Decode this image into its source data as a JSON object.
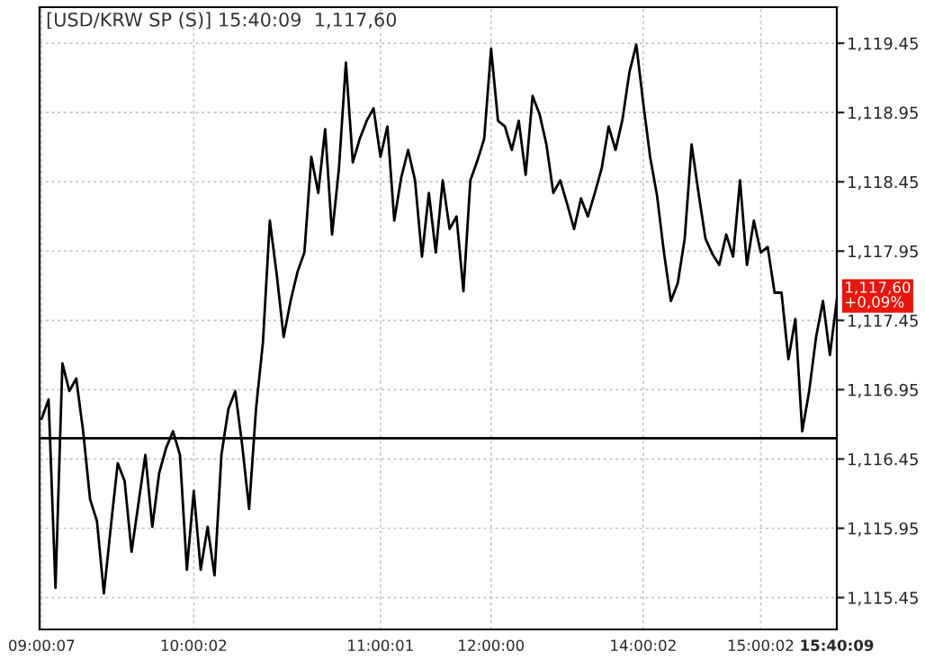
{
  "chart_data": {
    "type": "line",
    "title": "[USD/KRW SP (S)] 15:40:09  1,117,60",
    "categories": [
      "09:00:07",
      null,
      null,
      null,
      null,
      null,
      null,
      null,
      null,
      null,
      null,
      null,
      null,
      null,
      null,
      null,
      null,
      null,
      null,
      null,
      null,
      null,
      "10:00:02",
      null,
      null,
      null,
      null,
      null,
      null,
      null,
      null,
      null,
      null,
      null,
      null,
      null,
      null,
      null,
      null,
      null,
      null,
      null,
      null,
      null,
      null,
      null,
      null,
      null,
      null,
      "11:00:01",
      null,
      null,
      null,
      null,
      null,
      null,
      null,
      null,
      null,
      null,
      null,
      null,
      null,
      null,
      null,
      "12:00:00",
      null,
      null,
      null,
      null,
      null,
      null,
      null,
      null,
      null,
      null,
      null,
      null,
      null,
      null,
      null,
      null,
      null,
      null,
      null,
      null,
      null,
      "14:00:02",
      null,
      null,
      null,
      null,
      null,
      null,
      null,
      null,
      null,
      null,
      null,
      null,
      null,
      null,
      null,
      null,
      "15:00:02",
      null,
      null,
      null,
      null,
      null,
      null,
      null,
      null,
      null,
      null,
      "15:40:09"
    ],
    "series": [
      {
        "color": "#000000",
        "values": [
          1116.74,
          1116.88,
          1115.52,
          1117.14,
          1116.94,
          1117.03,
          1116.65,
          1116.16,
          1116.0,
          1115.48,
          1115.96,
          1116.42,
          1116.29,
          1115.78,
          1116.13,
          1116.48,
          1115.96,
          1116.35,
          1116.53,
          1116.65,
          1116.48,
          1115.65,
          1116.22,
          1115.65,
          1115.96,
          1115.61,
          1116.48,
          1116.81,
          1116.94,
          1116.55,
          1116.09,
          1116.81,
          1117.29,
          1118.17,
          1117.78,
          1117.33,
          1117.59,
          1117.8,
          1117.94,
          1118.63,
          1118.37,
          1118.83,
          1118.07,
          1118.55,
          1119.31,
          1118.59,
          1118.76,
          1118.89,
          1118.98,
          1118.63,
          1118.85,
          1118.17,
          1118.48,
          1118.68,
          1118.46,
          1117.91,
          1118.37,
          1117.94,
          1118.46,
          1118.11,
          1118.2,
          1117.66,
          1118.46,
          1118.6,
          1118.76,
          1119.41,
          1118.89,
          1118.85,
          1118.68,
          1118.89,
          1118.5,
          1119.07,
          1118.94,
          1118.72,
          1118.37,
          1118.46,
          1118.29,
          1118.11,
          1118.33,
          1118.2,
          1118.37,
          1118.55,
          1118.85,
          1118.68,
          1118.9,
          1119.24,
          1119.44,
          1119.02,
          1118.63,
          1118.35,
          1117.94,
          1117.59,
          1117.72,
          1118.04,
          1118.72,
          1118.37,
          1118.04,
          1117.93,
          1117.85,
          1118.07,
          1117.91,
          1118.46,
          1117.85,
          1118.17,
          1117.94,
          1117.98,
          1117.65,
          1117.65,
          1117.17,
          1117.46,
          1116.65,
          1116.94,
          1117.33,
          1117.59,
          1117.2,
          1117.6
        ]
      }
    ],
    "ylim": [
      1115.22,
      1119.71
    ],
    "yticks": [
      {
        "value": 1115.45,
        "label": "1,115.45"
      },
      {
        "value": 1115.95,
        "label": "1,115.95"
      },
      {
        "value": 1116.45,
        "label": "1,116.45"
      },
      {
        "value": 1116.95,
        "label": "1,116.95"
      },
      {
        "value": 1117.45,
        "label": "1,117.45"
      },
      {
        "value": 1117.95,
        "label": "1,117.95"
      },
      {
        "value": 1118.45,
        "label": "1,118.45"
      },
      {
        "value": 1118.95,
        "label": "1,118.95"
      },
      {
        "value": 1119.45,
        "label": "1,119.45"
      }
    ],
    "ref_lines": [
      {
        "axis": "y",
        "value": 1116.6,
        "color": "#000000"
      }
    ],
    "annotations": [
      {
        "text": "1,117,60\n+0,09%",
        "x": "15:40:09",
        "y": 1117.6
      }
    ],
    "grid": true
  }
}
